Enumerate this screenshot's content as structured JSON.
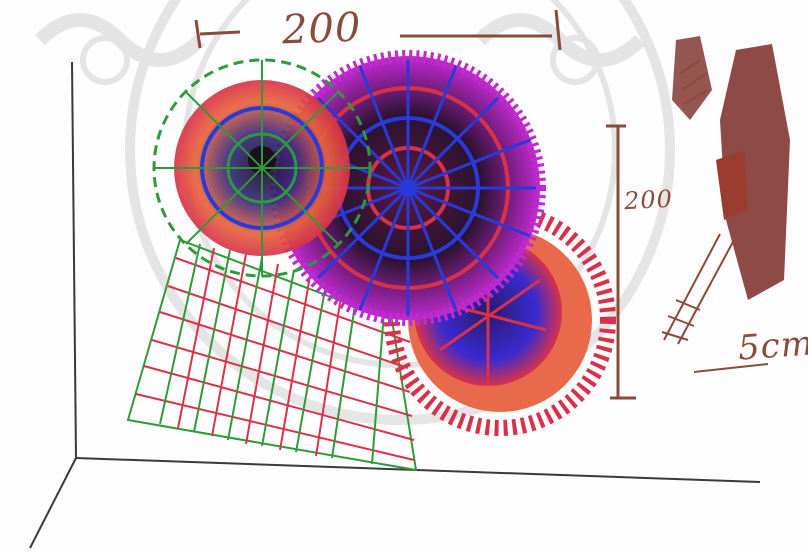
{
  "sketch": {
    "dimension_width": "200",
    "dimension_height": "200",
    "dimension_side": "5cm",
    "colors": {
      "ink": "#8a4a3c",
      "axis": "#3a3a3a",
      "watermark": "#c8c8c8",
      "net_green": "#2f9a3a",
      "net_red": "#d8324a",
      "net_blue": "#2a3ad8",
      "net_magenta": "#c02ad0",
      "core_dark": "#1a1020",
      "orange": "#e8643a",
      "side_brown": "#7a2c24"
    },
    "elements": [
      "watermark-seal",
      "woven-net",
      "small-spiral-disc",
      "large-spiral-disc",
      "rear-disc-with-fringe",
      "side-view-sketch"
    ]
  }
}
